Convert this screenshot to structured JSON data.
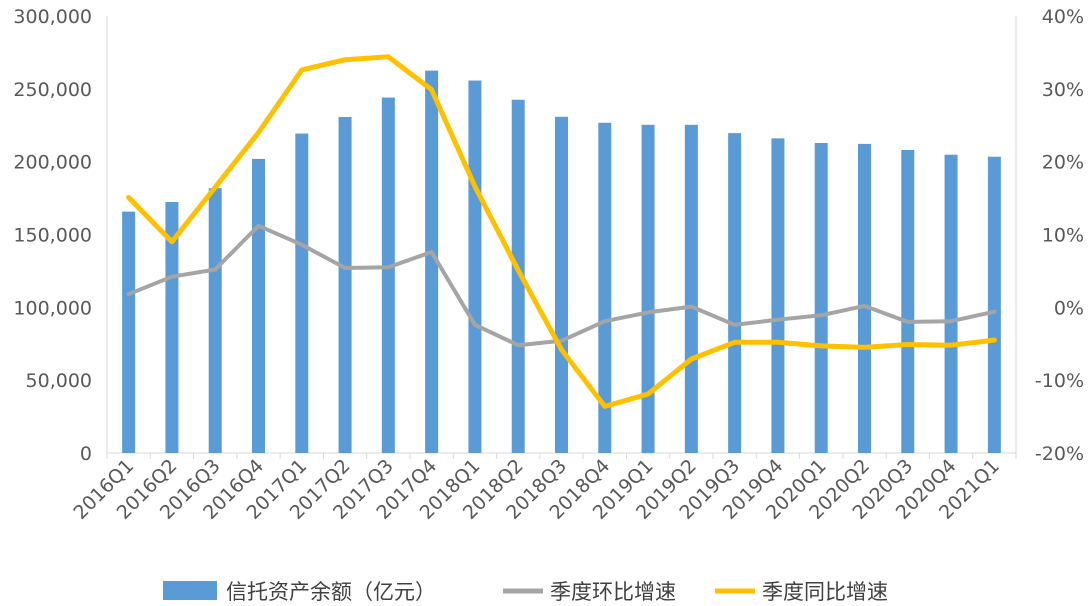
{
  "chart_data": {
    "type": "bar+line",
    "title": "",
    "categories": [
      "2016Q1",
      "2016Q2",
      "2016Q3",
      "2016Q4",
      "2017Q1",
      "2017Q2",
      "2017Q3",
      "2017Q4",
      "2018Q1",
      "2018Q2",
      "2018Q3",
      "2018Q4",
      "2019Q1",
      "2019Q2",
      "2019Q3",
      "2019Q4",
      "2020Q1",
      "2020Q2",
      "2020Q3",
      "2020Q4",
      "2021Q1"
    ],
    "left_axis": {
      "ylim": [
        0,
        300000
      ],
      "ticks": [
        "0",
        "50,000",
        "100,000",
        "150,000",
        "200,000",
        "250,000",
        "300,000"
      ]
    },
    "right_axis": {
      "ylim": [
        -0.2,
        0.4
      ],
      "ticks": [
        "-20%",
        "-10%",
        "0%",
        "10%",
        "20%",
        "30%",
        "40%"
      ]
    },
    "grid": false,
    "legend_position": "bottom",
    "series": [
      {
        "name": "信托资产余额（亿元）",
        "type": "bar",
        "axis": "left",
        "color": "#5B9BD5",
        "values": [
          165700,
          172300,
          181800,
          201900,
          219300,
          230700,
          244000,
          262500,
          255700,
          242500,
          230800,
          226700,
          225300,
          225300,
          219600,
          216000,
          212800,
          212200,
          208000,
          204800,
          203400
        ]
      },
      {
        "name": "季度环比增速",
        "type": "line",
        "axis": "right",
        "color": "#A5A5A5",
        "values": [
          0.018,
          0.042,
          0.052,
          0.112,
          0.086,
          0.054,
          0.055,
          0.076,
          -0.024,
          -0.052,
          -0.046,
          -0.019,
          -0.007,
          0.001,
          -0.024,
          -0.017,
          -0.011,
          0.002,
          -0.02,
          -0.019,
          -0.006
        ]
      },
      {
        "name": "季度同比增速",
        "type": "line",
        "axis": "right",
        "color": "#FFC000",
        "values": [
          0.151,
          0.09,
          0.165,
          0.24,
          0.326,
          0.34,
          0.344,
          0.299,
          0.166,
          0.051,
          -0.058,
          -0.136,
          -0.119,
          -0.071,
          -0.048,
          -0.048,
          -0.053,
          -0.055,
          -0.051,
          -0.052,
          -0.045
        ]
      }
    ]
  }
}
